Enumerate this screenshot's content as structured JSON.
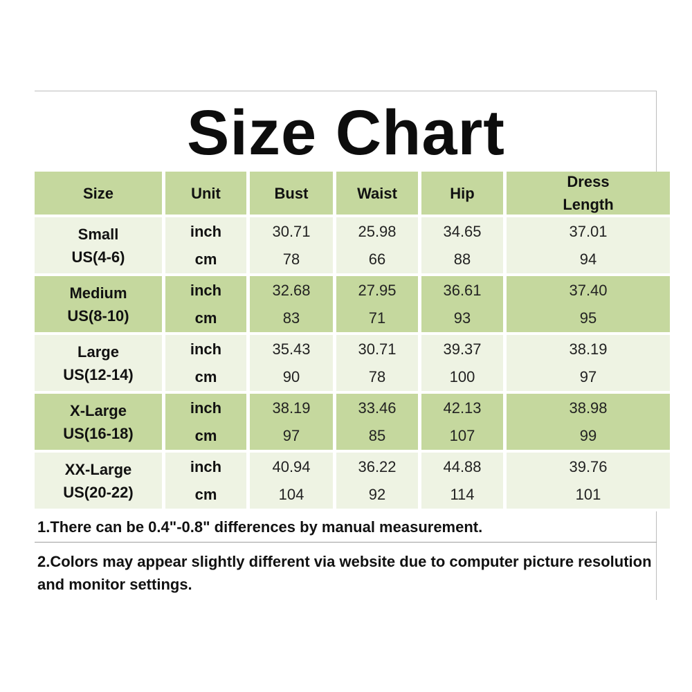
{
  "title": "Size Chart",
  "colors": {
    "header_green": "#c5d89e",
    "light_row": "#eef3e3",
    "dark_row": "#c5d89e"
  },
  "table": {
    "headers": [
      "Size",
      "Unit",
      "Bust",
      "Waist",
      "Hip",
      "Dress Length"
    ],
    "header_dress_line1": "Dress",
    "header_dress_line2": "Length",
    "rows": [
      {
        "size": "Small",
        "us": "US(4-6)",
        "units": [
          "inch",
          "cm"
        ],
        "bust": [
          "30.71",
          "78"
        ],
        "waist": [
          "25.98",
          "66"
        ],
        "hip": [
          "34.65",
          "88"
        ],
        "length": [
          "37.01",
          "94"
        ]
      },
      {
        "size": "Medium",
        "us": "US(8-10)",
        "units": [
          "inch",
          "cm"
        ],
        "bust": [
          "32.68",
          "83"
        ],
        "waist": [
          "27.95",
          "71"
        ],
        "hip": [
          "36.61",
          "93"
        ],
        "length": [
          "37.40",
          "95"
        ]
      },
      {
        "size": "Large",
        "us": "US(12-14)",
        "units": [
          "inch",
          "cm"
        ],
        "bust": [
          "35.43",
          "90"
        ],
        "waist": [
          "30.71",
          "78"
        ],
        "hip": [
          "39.37",
          "100"
        ],
        "length": [
          "38.19",
          "97"
        ]
      },
      {
        "size": "X-Large",
        "us": "US(16-18)",
        "units": [
          "inch",
          "cm"
        ],
        "bust": [
          "38.19",
          "97"
        ],
        "waist": [
          "33.46",
          "85"
        ],
        "hip": [
          "42.13",
          "107"
        ],
        "length": [
          "38.98",
          "99"
        ]
      },
      {
        "size": "XX-Large",
        "us": "US(20-22)",
        "units": [
          "inch",
          "cm"
        ],
        "bust": [
          "40.94",
          "104"
        ],
        "waist": [
          "36.22",
          "92"
        ],
        "hip": [
          "44.88",
          "114"
        ],
        "length": [
          "39.76",
          "101"
        ]
      }
    ]
  },
  "notes": [
    "1.There can be 0.4\"-0.8\" differences by manual measurement.",
    "2.Colors may appear slightly different via website due to computer picture resolution and monitor settings."
  ]
}
